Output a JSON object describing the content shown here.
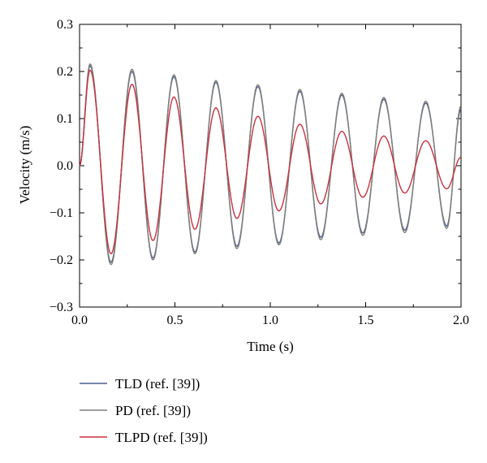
{
  "chart_data": {
    "type": "line",
    "title": "",
    "xlabel": "Time (s)",
    "ylabel": "Velocity (m/s)",
    "xlim": [
      0.0,
      2.0
    ],
    "ylim": [
      -0.3,
      0.3
    ],
    "xticks": [
      0.0,
      0.5,
      1.0,
      1.5,
      2.0
    ],
    "xtick_labels": [
      "0.0",
      "0.5",
      "1.0",
      "1.5",
      "2.0"
    ],
    "yticks": [
      -0.3,
      -0.2,
      -0.1,
      0.0,
      0.1,
      0.2,
      0.3
    ],
    "ytick_labels": [
      "−0.3",
      "−0.2",
      "−0.1",
      "0.0",
      "0.1",
      "0.2",
      "0.3"
    ],
    "grid": false,
    "legend_position": "below-plot",
    "series": [
      {
        "name": "TLD (ref. [39])",
        "color": "#4a5f8f",
        "x": [
          0.0,
          0.055,
          0.165,
          0.275,
          0.385,
          0.495,
          0.605,
          0.715,
          0.825,
          0.935,
          1.045,
          1.155,
          1.265,
          1.375,
          1.485,
          1.595,
          1.705,
          1.815,
          1.925,
          2.0
        ],
        "y": [
          0.0,
          0.212,
          -0.205,
          0.2,
          -0.196,
          0.189,
          -0.183,
          0.177,
          -0.171,
          0.168,
          -0.164,
          0.158,
          -0.152,
          0.15,
          -0.143,
          0.141,
          -0.137,
          0.133,
          -0.128,
          0.12
        ]
      },
      {
        "name": "PD (ref. [39])",
        "color": "#7f7f7a",
        "x": [
          0.0,
          0.055,
          0.165,
          0.275,
          0.385,
          0.495,
          0.605,
          0.715,
          0.825,
          0.935,
          1.045,
          1.155,
          1.265,
          1.375,
          1.485,
          1.595,
          1.705,
          1.815,
          1.925,
          2.0
        ],
        "y": [
          0.0,
          0.216,
          -0.21,
          0.205,
          -0.2,
          0.193,
          -0.187,
          0.181,
          -0.176,
          0.172,
          -0.168,
          0.162,
          -0.157,
          0.154,
          -0.148,
          0.145,
          -0.142,
          0.137,
          -0.133,
          0.127
        ]
      },
      {
        "name": "TLPD (ref. [39])",
        "color": "#c8323f",
        "x": [
          0.0,
          0.055,
          0.165,
          0.275,
          0.385,
          0.495,
          0.605,
          0.715,
          0.825,
          0.935,
          1.045,
          1.155,
          1.265,
          1.375,
          1.485,
          1.595,
          1.705,
          1.815,
          1.925,
          2.0
        ],
        "y": [
          0.0,
          0.203,
          -0.187,
          0.173,
          -0.159,
          0.146,
          -0.135,
          0.123,
          -0.112,
          0.105,
          -0.096,
          0.088,
          -0.081,
          0.073,
          -0.067,
          0.063,
          -0.058,
          0.053,
          -0.049,
          0.018
        ]
      }
    ]
  }
}
